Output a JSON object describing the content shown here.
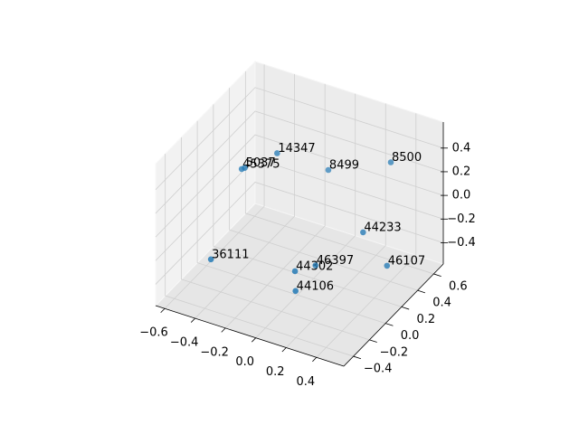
{
  "chart_data": {
    "type": "scatter3d",
    "labels": [
      "14347",
      "8500",
      "8499",
      "45375",
      "5037",
      "44233",
      "36111",
      "44302",
      "46397",
      "46107",
      "44106"
    ],
    "x": [
      -0.24,
      0.34,
      -0.04,
      -0.41,
      -0.4,
      0.3,
      -0.47,
      0.01,
      0.05,
      0.41,
      0.04
    ],
    "y": [
      0.2,
      0.52,
      0.46,
      0.08,
      0.1,
      0.25,
      -0.19,
      -0.05,
      0.13,
      0.34,
      -0.1
    ],
    "z": [
      0.38,
      0.32,
      0.14,
      0.26,
      0.26,
      -0.1,
      -0.34,
      -0.34,
      -0.4,
      -0.4,
      -0.46
    ],
    "color": "#1f77b4",
    "xlim": [
      -0.66,
      0.58
    ],
    "ylim": [
      -0.52,
      0.72
    ],
    "zlim": [
      -0.58,
      0.62
    ],
    "xticks": [
      {
        "value": -0.6,
        "label": "−0.6"
      },
      {
        "value": -0.4,
        "label": "−0.4"
      },
      {
        "value": -0.2,
        "label": "−0.2"
      },
      {
        "value": 0.0,
        "label": "0.0"
      },
      0.2,
      0.4
    ],
    "yticks": [
      {
        "value": -0.4,
        "label": "−0.4"
      },
      {
        "value": -0.2,
        "label": "−0.2"
      },
      {
        "value": 0.0,
        "label": "0.0"
      },
      0.2,
      0.4,
      0.6
    ],
    "zticks": [
      {
        "value": -0.4,
        "label": "−0.4"
      },
      {
        "value": -0.2,
        "label": "−0.2"
      },
      {
        "value": 0.0,
        "label": "0.0"
      },
      0.2,
      0.4
    ],
    "grid": true
  }
}
